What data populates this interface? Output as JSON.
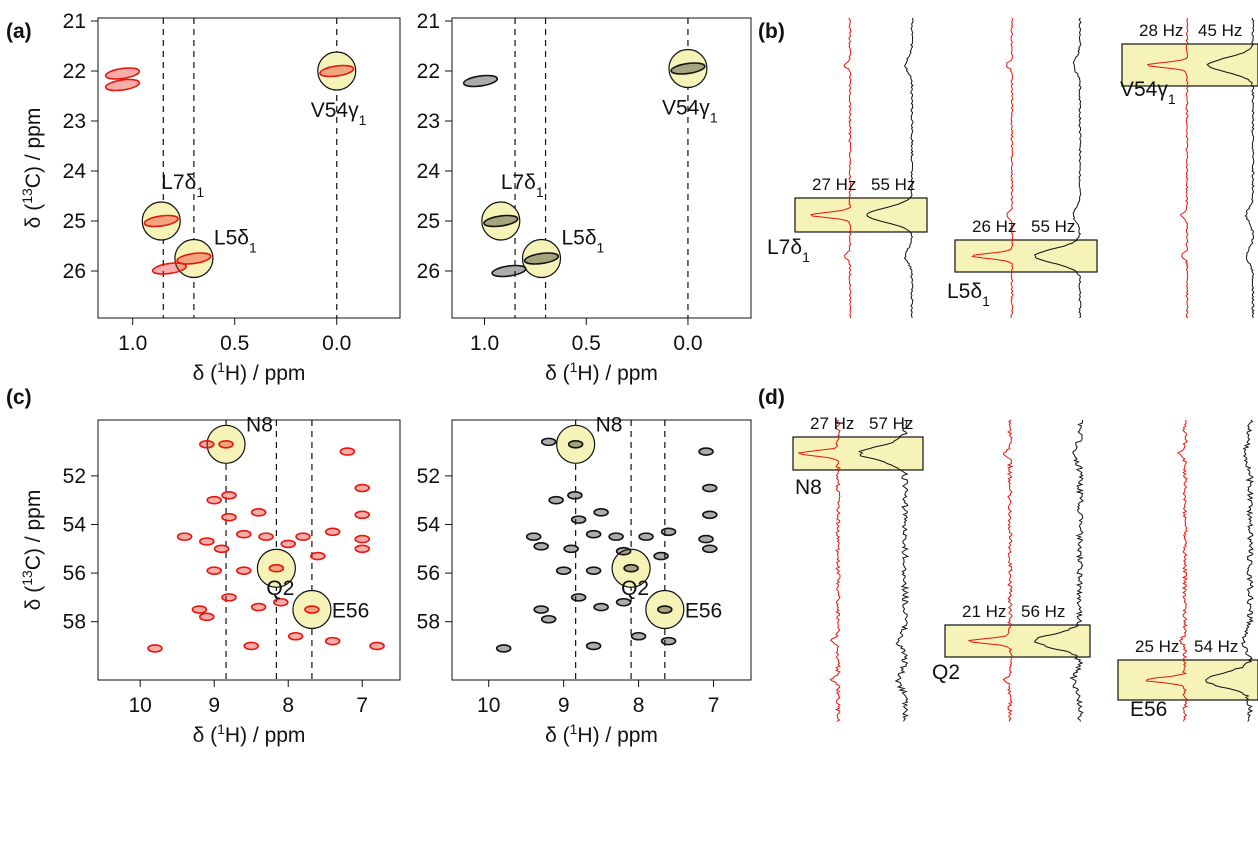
{
  "panel_labels": [
    "(a)",
    "(b)",
    "(c)",
    "(d)"
  ],
  "chart_data": [
    {
      "type": "scatter",
      "color": "#e8150c",
      "x_label": {
        "before": "δ (",
        "sup": "1",
        "after": "H) / ppm"
      },
      "y_label": {
        "before": "δ (",
        "sup": "13",
        "after": "C) / ppm"
      },
      "xlim": [
        1.17,
        -0.31
      ],
      "ylim": [
        20.94,
        26.94
      ],
      "xticks": [
        {
          "value": 1,
          "label": "1.0"
        },
        {
          "value": 0.5,
          "label": "0.5"
        },
        {
          "value": 0,
          "label": "0.0"
        }
      ],
      "yticks": [
        21,
        22,
        23,
        24,
        25,
        26
      ],
      "dashed_lines": [
        0.85,
        0.7,
        0.0
      ],
      "peaks": {
        "x": [
          1.05,
          1.05,
          0.86,
          0.7,
          0.82,
          0.0
        ],
        "y": [
          22.05,
          22.28,
          25.0,
          25.75,
          25.95,
          22.0
        ]
      },
      "highlights": [
        {
          "label": "V54γ",
          "sub": "1",
          "x": 0.0,
          "y": 22.0
        },
        {
          "label": "L7δ",
          "sub": "1",
          "x": 0.86,
          "y": 25.0
        },
        {
          "label": "L5δ",
          "sub": "1",
          "x": 0.7,
          "y": 25.75
        }
      ]
    },
    {
      "type": "scatter",
      "color": "#111111",
      "x_label": {
        "before": "δ (",
        "sup": "1",
        "after": "H) / ppm"
      },
      "xlim": [
        1.16,
        -0.31
      ],
      "ylim": [
        20.94,
        26.94
      ],
      "xticks": [
        {
          "value": 1,
          "label": "1.0"
        },
        {
          "value": 0.5,
          "label": "0.5"
        },
        {
          "value": 0,
          "label": "0.0"
        }
      ],
      "yticks": [
        21,
        22,
        23,
        24,
        25,
        26
      ],
      "dashed_lines": [
        0.85,
        0.7,
        0.0
      ],
      "peaks": {
        "x": [
          1.02,
          0.92,
          0.72,
          0.88,
          0.0
        ],
        "y": [
          22.2,
          25.0,
          25.75,
          26.0,
          21.95
        ]
      },
      "highlights": [
        {
          "label": "V54γ",
          "sub": "1",
          "x": 0.0,
          "y": 21.95
        },
        {
          "label": "L7δ",
          "sub": "1",
          "x": 0.92,
          "y": 25.0
        },
        {
          "label": "L5δ",
          "sub": "1",
          "x": 0.72,
          "y": 25.75
        }
      ]
    },
    {
      "type": "scatter",
      "color": "#e8150c",
      "x_label": {
        "before": "δ (",
        "sup": "1",
        "after": "H) / ppm"
      },
      "y_label": {
        "before": "δ (",
        "sup": "13",
        "after": "C) / ppm"
      },
      "xlim": [
        10.57,
        6.49
      ],
      "ylim": [
        49.7,
        60.4
      ],
      "xticks": [
        10,
        9,
        8,
        7
      ],
      "yticks": [
        52,
        54,
        56,
        58
      ],
      "dashed_lines": [
        8.84,
        8.16,
        7.68
      ],
      "peaks": {
        "x": [
          8.84,
          9.1,
          7.2,
          7.0,
          8.8,
          9.0,
          8.4,
          7.0,
          8.8,
          9.4,
          9.1,
          8.6,
          8.3,
          7.8,
          7.4,
          8.0,
          7.0,
          8.9,
          7.0,
          7.6,
          9.0,
          8.6,
          8.16,
          8.8,
          8.1,
          9.2,
          8.4,
          7.68,
          9.1,
          7.9,
          7.4,
          8.5,
          9.8,
          6.8
        ],
        "y": [
          50.7,
          50.7,
          51.0,
          52.5,
          52.8,
          53.0,
          53.5,
          53.6,
          53.7,
          54.5,
          54.7,
          54.4,
          54.5,
          54.5,
          54.3,
          54.8,
          54.6,
          55.0,
          55.0,
          55.3,
          55.9,
          55.9,
          55.8,
          57.0,
          57.2,
          57.5,
          57.4,
          57.5,
          57.8,
          58.6,
          58.8,
          59.0,
          59.1,
          59.0
        ]
      },
      "highlights": [
        {
          "label": "N8",
          "x": 8.84,
          "y": 50.7
        },
        {
          "label": "Q2",
          "x": 8.16,
          "y": 55.8
        },
        {
          "label": "E56",
          "x": 7.68,
          "y": 57.5
        }
      ]
    },
    {
      "type": "scatter",
      "color": "#111111",
      "x_label": {
        "before": "δ (",
        "sup": "1",
        "after": "H) / ppm"
      },
      "xlim": [
        10.49,
        6.5
      ],
      "ylim": [
        49.7,
        60.4
      ],
      "xticks": [
        10,
        9,
        8,
        7
      ],
      "yticks": [
        52,
        54,
        56,
        58
      ],
      "dashed_lines": [
        8.84,
        8.1,
        7.65
      ],
      "peaks": {
        "x": [
          8.84,
          9.2,
          7.1,
          7.05,
          8.85,
          9.1,
          8.5,
          7.05,
          8.8,
          9.4,
          9.3,
          8.6,
          8.3,
          7.9,
          7.6,
          8.2,
          7.1,
          8.9,
          7.05,
          7.7,
          9.0,
          8.6,
          8.1,
          8.8,
          8.2,
          9.3,
          8.5,
          7.65,
          9.2,
          8.0,
          7.6,
          8.6,
          9.8
        ],
        "y": [
          50.7,
          50.6,
          51.0,
          52.5,
          52.8,
          53.0,
          53.5,
          53.6,
          53.8,
          54.5,
          54.9,
          54.4,
          54.5,
          54.5,
          54.3,
          55.1,
          54.6,
          55.0,
          55.0,
          55.3,
          55.9,
          55.9,
          55.8,
          57.0,
          57.2,
          57.5,
          57.4,
          57.5,
          57.9,
          58.6,
          58.8,
          59.0,
          59.1
        ]
      },
      "highlights": [
        {
          "label": "N8",
          "x": 8.84,
          "y": 50.7
        },
        {
          "label": "Q2",
          "x": 8.1,
          "y": 55.8
        },
        {
          "label": "E56",
          "x": 7.65,
          "y": 57.5
        }
      ]
    }
  ],
  "linewidths": [
    {
      "entries": [
        {
          "name": "L7δ",
          "sub": "1",
          "red": "27 Hz",
          "black": "55 Hz"
        },
        {
          "name": "L5δ",
          "sub": "1",
          "red": "26 Hz",
          "black": "55 Hz"
        },
        {
          "name": "V54γ",
          "sub": "1",
          "red": "28 Hz",
          "black": "45 Hz"
        }
      ]
    },
    {
      "entries": [
        {
          "name": "N8",
          "red": "27 Hz",
          "black": "57 Hz"
        },
        {
          "name": "Q2",
          "red": "21 Hz",
          "black": "56 Hz"
        },
        {
          "name": "E56",
          "red": "25 Hz",
          "black": "54 Hz"
        }
      ]
    }
  ]
}
